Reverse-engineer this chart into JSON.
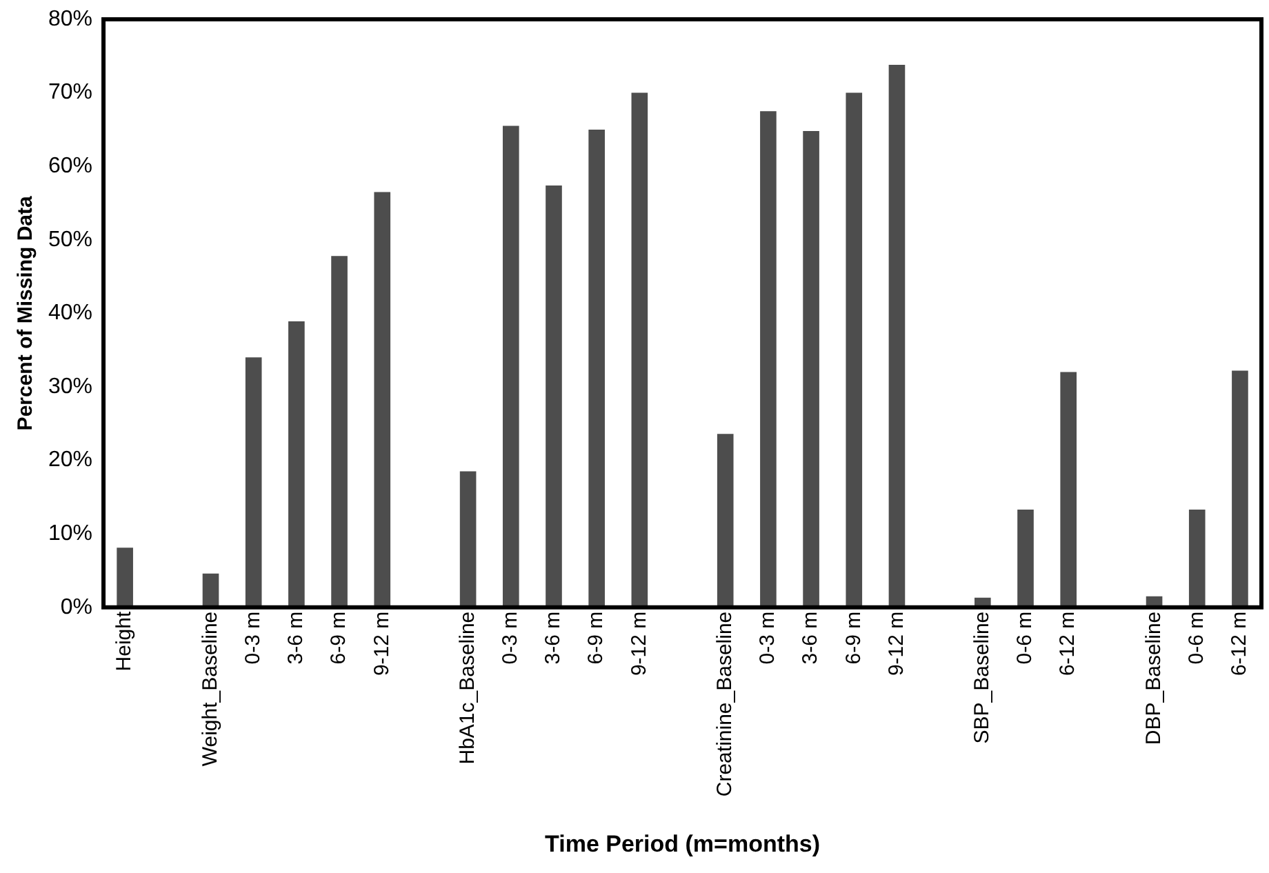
{
  "chart_data": {
    "type": "bar",
    "xlabel": "Time Period (m=months)",
    "ylabel": "Percent of Missing Data",
    "categories": [
      "Height",
      null,
      "Weight_Baseline",
      "0-3 m",
      "3-6 m",
      "6-9 m",
      "9-12 m",
      null,
      "HbA1c_Baseline",
      "0-3 m",
      "3-6 m",
      "6-9 m",
      "9-12 m",
      null,
      "Creatinine_Baseline",
      "0-3 m",
      "3-6 m",
      "6-9 m",
      "9-12 m",
      null,
      "SBP_Baseline",
      "0-6 m",
      "6-12 m",
      null,
      "DBP_Baseline",
      "0-6 m",
      "6-12 m"
    ],
    "values": [
      8.1,
      null,
      4.6,
      34,
      38.9,
      47.8,
      56.5,
      null,
      18.5,
      65.5,
      57.4,
      65,
      70,
      null,
      23.6,
      67.5,
      64.8,
      70,
      73.8,
      null,
      1.3,
      13.3,
      32,
      null,
      1.5,
      13.3,
      32.2
    ],
    "color": "#4d4d4d",
    "ylim": [
      0,
      80
    ],
    "yticks": [
      {
        "value": 0,
        "label": "0%"
      },
      {
        "value": 10,
        "label": "10%"
      },
      {
        "value": 20,
        "label": "20%"
      },
      {
        "value": 30,
        "label": "30%"
      },
      {
        "value": 40,
        "label": "40%"
      },
      {
        "value": 50,
        "label": "50%"
      },
      {
        "value": 60,
        "label": "60%"
      },
      {
        "value": 70,
        "label": "70%"
      },
      {
        "value": 80,
        "label": "80%"
      }
    ],
    "grid": false,
    "legend": false
  }
}
